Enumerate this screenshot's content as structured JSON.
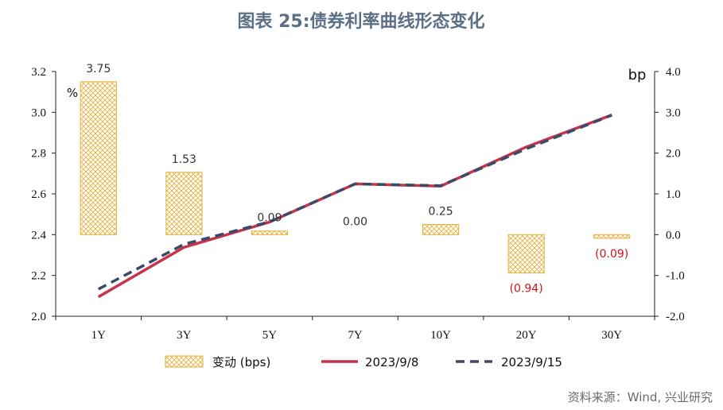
{
  "title": "图表 25:债券利率曲线形态变化",
  "source": "资料来源：Wind, 兴业研究",
  "chart_data": {
    "type": "bar+line",
    "categories": [
      "1Y",
      "3Y",
      "5Y",
      "7Y",
      "10Y",
      "20Y",
      "30Y"
    ],
    "left_axis": {
      "unit": "%",
      "ylim": [
        2.0,
        3.2
      ],
      "ticks": [
        "2.0",
        "2.2",
        "2.4",
        "2.6",
        "2.8",
        "3.0",
        "3.2"
      ]
    },
    "right_axis": {
      "unit": "bp",
      "ylim": [
        -2.0,
        4.0
      ],
      "ticks": [
        "-2.0",
        "-1.0",
        "0.0",
        "1.0",
        "2.0",
        "3.0",
        "4.0"
      ]
    },
    "bars": {
      "name": "变动 (bps)",
      "axis": "right",
      "values": [
        3.75,
        1.53,
        0.09,
        0.0,
        0.25,
        -0.94,
        -0.09
      ],
      "labels": [
        "3.75",
        "1.53",
        "0.09",
        "0.00",
        "0.25",
        "(0.94)",
        "(0.09)"
      ],
      "color": "#e6b13c"
    },
    "series": [
      {
        "name": "2023/9/8",
        "axis": "left",
        "style": "solid",
        "color": "#c8334a",
        "values": [
          2.095,
          2.338,
          2.462,
          2.649,
          2.638,
          2.83,
          2.987
        ]
      },
      {
        "name": "2023/9/15",
        "axis": "left",
        "style": "dashed",
        "color": "#3a4a6a",
        "values": [
          2.133,
          2.353,
          2.463,
          2.649,
          2.64,
          2.821,
          2.986
        ]
      }
    ],
    "legend_position": "bottom",
    "grid": false
  }
}
